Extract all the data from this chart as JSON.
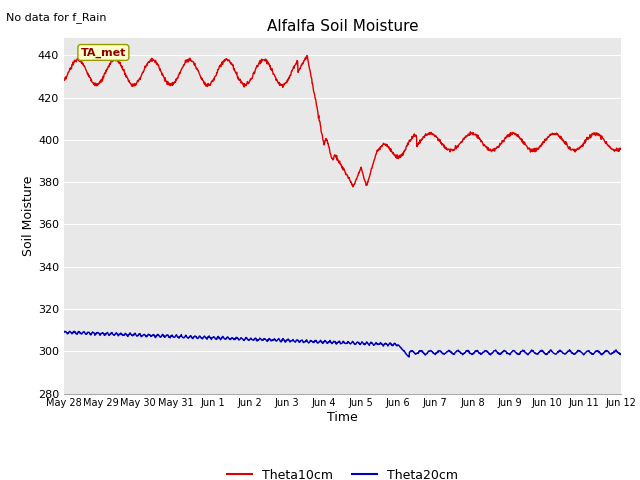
{
  "title": "Alfalfa Soil Moisture",
  "xlabel": "Time",
  "ylabel": "Soil Moisture",
  "top_left_text": "No data for f_Rain",
  "annotation_box": "TA_met",
  "ylim": [
    280,
    448
  ],
  "yticks": [
    280,
    300,
    320,
    340,
    360,
    380,
    400,
    420,
    440
  ],
  "x_labels": [
    "May 28",
    "May 29",
    "May 30",
    "May 31",
    "Jun 1",
    "Jun 2",
    "Jun 3",
    "Jun 4",
    "Jun 5",
    "Jun 6",
    "Jun 7",
    "Jun 8",
    "Jun 9",
    "Jun 10",
    "Jun 11",
    "Jun 12"
  ],
  "bg_color": "#e8e8e8",
  "line1_color": "#dd0000",
  "line2_color": "#0000bb",
  "legend_labels": [
    "Theta10cm",
    "Theta20cm"
  ]
}
